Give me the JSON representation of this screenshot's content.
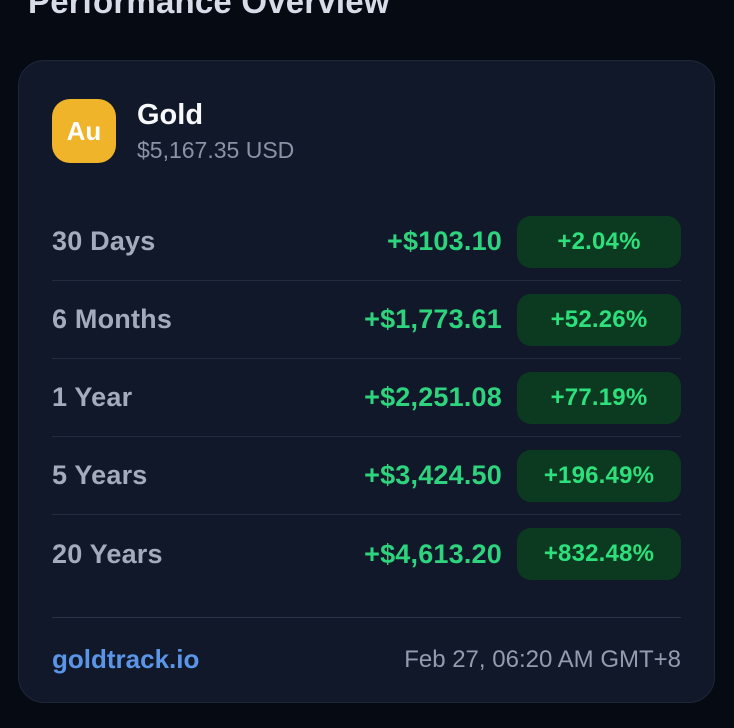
{
  "page": {
    "title": "Performance Overview"
  },
  "card": {
    "asset": {
      "symbol": "Au",
      "name": "Gold",
      "price": "$5,167.35 USD"
    },
    "rows": [
      {
        "label": "30 Days",
        "change": "+$103.10",
        "percent": "+2.04%"
      },
      {
        "label": "6 Months",
        "change": "+$1,773.61",
        "percent": "+52.26%"
      },
      {
        "label": "1 Year",
        "change": "+$2,251.08",
        "percent": "+77.19%"
      },
      {
        "label": "5 Years",
        "change": "+$3,424.50",
        "percent": "+196.49%"
      },
      {
        "label": "20 Years",
        "change": "+$4,613.20",
        "percent": "+832.48%"
      }
    ],
    "footer": {
      "source": "goldtrack.io",
      "timestamp": "Feb 27, 06:20 AM GMT+8"
    }
  },
  "colors": {
    "accent_gold": "#f0b42b",
    "positive_green": "#2ed47d",
    "badge_background": "#0c3a20",
    "link_blue": "#5a95e8",
    "card_background": "#111829",
    "page_background": "#060a13"
  }
}
